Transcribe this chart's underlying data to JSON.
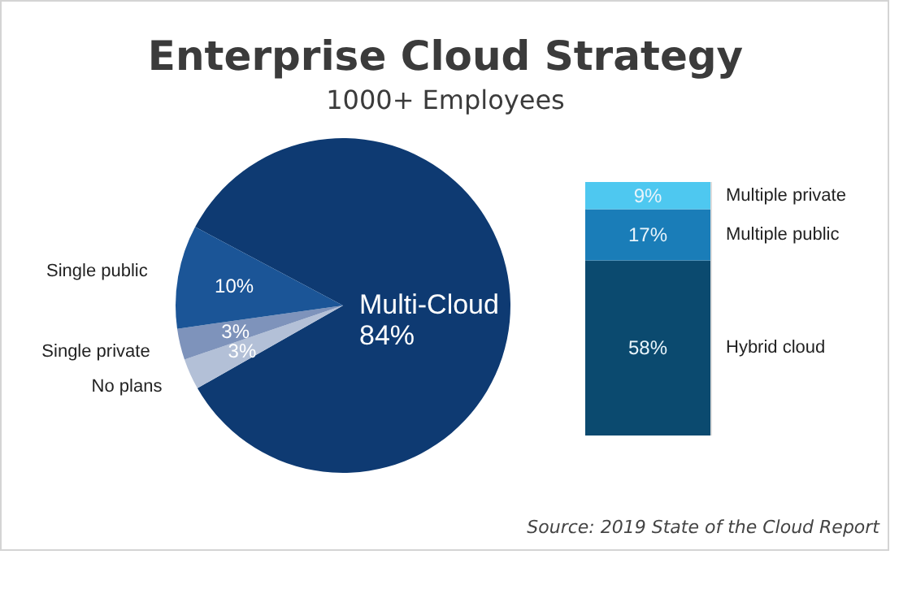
{
  "chart_data": [
    {
      "type": "pie",
      "title": "Enterprise Cloud Strategy",
      "subtitle": "1000+ Employees",
      "categories": [
        "Multi-Cloud",
        "No plans",
        "Single private",
        "Single public"
      ],
      "values": [
        84,
        3,
        3,
        10
      ],
      "value_labels": [
        "84%",
        "3%",
        "3%",
        "10%"
      ],
      "colors": [
        "#0e3a72",
        "#b3c0d7",
        "#7e93bb",
        "#1b5597"
      ]
    },
    {
      "type": "bar",
      "stacked": true,
      "categories": [
        null
      ],
      "series": [
        {
          "name": "Hybrid cloud",
          "color": "#0b4a6f",
          "values": [
            58
          ],
          "value_labels": [
            "58%"
          ]
        },
        {
          "name": "Multiple public",
          "color": "#1a7db8",
          "values": [
            17
          ],
          "value_labels": [
            "17%"
          ]
        },
        {
          "name": "Multiple private",
          "color": "#4ec8f0",
          "values": [
            9
          ],
          "value_labels": [
            "9%"
          ]
        }
      ],
      "tick_labels": false,
      "annotations": [
        "Source: 2019 State of the Cloud Report"
      ]
    }
  ]
}
